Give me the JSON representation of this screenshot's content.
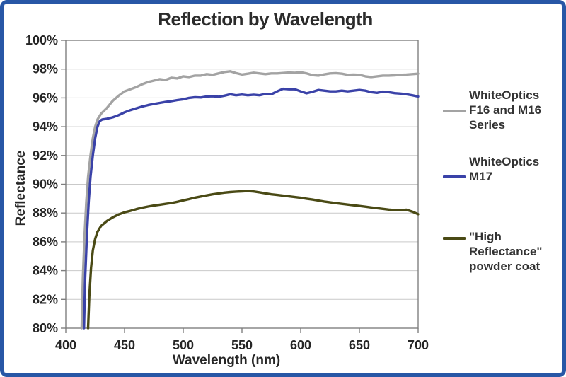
{
  "chart_data": {
    "type": "line",
    "title": "Reflection by Wavelength",
    "xlabel": "Wavelength (nm)",
    "ylabel": "Reflectance",
    "xlim": [
      400,
      700
    ],
    "ylim": [
      80,
      100
    ],
    "x_ticks": [
      400,
      450,
      500,
      550,
      600,
      650,
      700
    ],
    "y_tick_values": [
      100,
      98,
      96,
      94,
      92,
      90,
      88,
      86,
      84,
      82,
      80
    ],
    "y_tick_labels": [
      "100%",
      "98%",
      "96%",
      "94%",
      "92%",
      "90%",
      "88%",
      "86%",
      "84%",
      "82%",
      "80%"
    ],
    "grid": "horizontal-only",
    "legend_position": "right",
    "colors": {
      "axis": "#7f7f7f",
      "gridline": "#c9c9c9",
      "text": "#262626",
      "frame_border": "#2857a6"
    },
    "series": [
      {
        "name": "WhiteOptics F16 and M16 Series",
        "color": "#a3a3a3",
        "points": [
          [
            413.5,
            80
          ],
          [
            414.5,
            83.5
          ],
          [
            416,
            86.5
          ],
          [
            417.5,
            88.8
          ],
          [
            419,
            90.5
          ],
          [
            421,
            92
          ],
          [
            423,
            93.2
          ],
          [
            425,
            94
          ],
          [
            427,
            94.5
          ],
          [
            430,
            94.9
          ],
          [
            435,
            95.3
          ],
          [
            440,
            95.8
          ],
          [
            445,
            96.15
          ],
          [
            450,
            96.45
          ],
          [
            455,
            96.6
          ],
          [
            460,
            96.75
          ],
          [
            465,
            96.95
          ],
          [
            470,
            97.1
          ],
          [
            475,
            97.2
          ],
          [
            480,
            97.3
          ],
          [
            485,
            97.25
          ],
          [
            490,
            97.4
          ],
          [
            495,
            97.35
          ],
          [
            500,
            97.5
          ],
          [
            505,
            97.45
          ],
          [
            510,
            97.55
          ],
          [
            515,
            97.55
          ],
          [
            520,
            97.65
          ],
          [
            525,
            97.6
          ],
          [
            530,
            97.7
          ],
          [
            535,
            97.8
          ],
          [
            540,
            97.85
          ],
          [
            545,
            97.72
          ],
          [
            550,
            97.62
          ],
          [
            555,
            97.68
          ],
          [
            560,
            97.75
          ],
          [
            565,
            97.7
          ],
          [
            570,
            97.65
          ],
          [
            575,
            97.7
          ],
          [
            580,
            97.7
          ],
          [
            585,
            97.73
          ],
          [
            590,
            97.76
          ],
          [
            595,
            97.74
          ],
          [
            600,
            97.78
          ],
          [
            605,
            97.7
          ],
          [
            610,
            97.58
          ],
          [
            615,
            97.55
          ],
          [
            620,
            97.63
          ],
          [
            625,
            97.7
          ],
          [
            630,
            97.72
          ],
          [
            635,
            97.68
          ],
          [
            640,
            97.6
          ],
          [
            645,
            97.62
          ],
          [
            650,
            97.6
          ],
          [
            655,
            97.5
          ],
          [
            660,
            97.45
          ],
          [
            665,
            97.5
          ],
          [
            670,
            97.55
          ],
          [
            675,
            97.55
          ],
          [
            680,
            97.57
          ],
          [
            685,
            97.6
          ],
          [
            690,
            97.62
          ],
          [
            695,
            97.65
          ],
          [
            700,
            97.68
          ]
        ]
      },
      {
        "name": "WhiteOptics M17",
        "color": "#3a42a8",
        "points": [
          [
            415.5,
            80
          ],
          [
            416.5,
            83.5
          ],
          [
            418,
            86.5
          ],
          [
            419.5,
            88.8
          ],
          [
            421,
            90.5
          ],
          [
            423,
            92
          ],
          [
            425,
            93.2
          ],
          [
            427,
            94
          ],
          [
            429,
            94.4
          ],
          [
            431,
            94.5
          ],
          [
            435,
            94.55
          ],
          [
            440,
            94.65
          ],
          [
            445,
            94.8
          ],
          [
            450,
            95
          ],
          [
            455,
            95.15
          ],
          [
            460,
            95.28
          ],
          [
            465,
            95.4
          ],
          [
            470,
            95.5
          ],
          [
            475,
            95.58
          ],
          [
            480,
            95.65
          ],
          [
            485,
            95.72
          ],
          [
            490,
            95.78
          ],
          [
            495,
            95.85
          ],
          [
            500,
            95.9
          ],
          [
            505,
            96
          ],
          [
            510,
            96.05
          ],
          [
            515,
            96.03
          ],
          [
            520,
            96.1
          ],
          [
            525,
            96.12
          ],
          [
            530,
            96.08
          ],
          [
            535,
            96.15
          ],
          [
            540,
            96.25
          ],
          [
            545,
            96.18
          ],
          [
            550,
            96.23
          ],
          [
            555,
            96.18
          ],
          [
            560,
            96.22
          ],
          [
            565,
            96.18
          ],
          [
            570,
            96.28
          ],
          [
            575,
            96.25
          ],
          [
            580,
            96.45
          ],
          [
            585,
            96.63
          ],
          [
            590,
            96.6
          ],
          [
            595,
            96.6
          ],
          [
            600,
            96.45
          ],
          [
            605,
            96.32
          ],
          [
            610,
            96.42
          ],
          [
            615,
            96.55
          ],
          [
            620,
            96.5
          ],
          [
            625,
            96.45
          ],
          [
            630,
            96.45
          ],
          [
            635,
            96.5
          ],
          [
            640,
            96.45
          ],
          [
            645,
            96.5
          ],
          [
            650,
            96.55
          ],
          [
            655,
            96.5
          ],
          [
            660,
            96.4
          ],
          [
            665,
            96.35
          ],
          [
            670,
            96.43
          ],
          [
            675,
            96.4
          ],
          [
            680,
            96.33
          ],
          [
            685,
            96.3
          ],
          [
            690,
            96.25
          ],
          [
            695,
            96.18
          ],
          [
            700,
            96.1
          ]
        ]
      },
      {
        "name": "\"High Reflectance\" powder coat",
        "color": "#4a4a15",
        "points": [
          [
            419,
            80
          ],
          [
            420,
            82.2
          ],
          [
            421.5,
            84.2
          ],
          [
            423,
            85.4
          ],
          [
            425,
            86.2
          ],
          [
            427,
            86.7
          ],
          [
            430,
            87.1
          ],
          [
            435,
            87.45
          ],
          [
            440,
            87.7
          ],
          [
            445,
            87.9
          ],
          [
            450,
            88.05
          ],
          [
            455,
            88.15
          ],
          [
            460,
            88.27
          ],
          [
            465,
            88.37
          ],
          [
            470,
            88.45
          ],
          [
            475,
            88.52
          ],
          [
            480,
            88.58
          ],
          [
            485,
            88.64
          ],
          [
            490,
            88.7
          ],
          [
            495,
            88.78
          ],
          [
            500,
            88.88
          ],
          [
            505,
            88.97
          ],
          [
            510,
            89.07
          ],
          [
            515,
            89.15
          ],
          [
            520,
            89.23
          ],
          [
            525,
            89.3
          ],
          [
            530,
            89.36
          ],
          [
            535,
            89.42
          ],
          [
            540,
            89.46
          ],
          [
            545,
            89.49
          ],
          [
            550,
            89.51
          ],
          [
            555,
            89.53
          ],
          [
            560,
            89.5
          ],
          [
            565,
            89.44
          ],
          [
            570,
            89.37
          ],
          [
            575,
            89.3
          ],
          [
            580,
            89.26
          ],
          [
            585,
            89.21
          ],
          [
            590,
            89.16
          ],
          [
            595,
            89.11
          ],
          [
            600,
            89.06
          ],
          [
            605,
            89
          ],
          [
            610,
            88.94
          ],
          [
            615,
            88.87
          ],
          [
            620,
            88.8
          ],
          [
            625,
            88.74
          ],
          [
            630,
            88.69
          ],
          [
            635,
            88.64
          ],
          [
            640,
            88.59
          ],
          [
            645,
            88.54
          ],
          [
            650,
            88.49
          ],
          [
            655,
            88.44
          ],
          [
            660,
            88.39
          ],
          [
            665,
            88.34
          ],
          [
            670,
            88.29
          ],
          [
            675,
            88.24
          ],
          [
            680,
            88.2
          ],
          [
            685,
            88.19
          ],
          [
            690,
            88.23
          ],
          [
            695,
            88.1
          ],
          [
            700,
            87.92
          ]
        ]
      }
    ]
  }
}
